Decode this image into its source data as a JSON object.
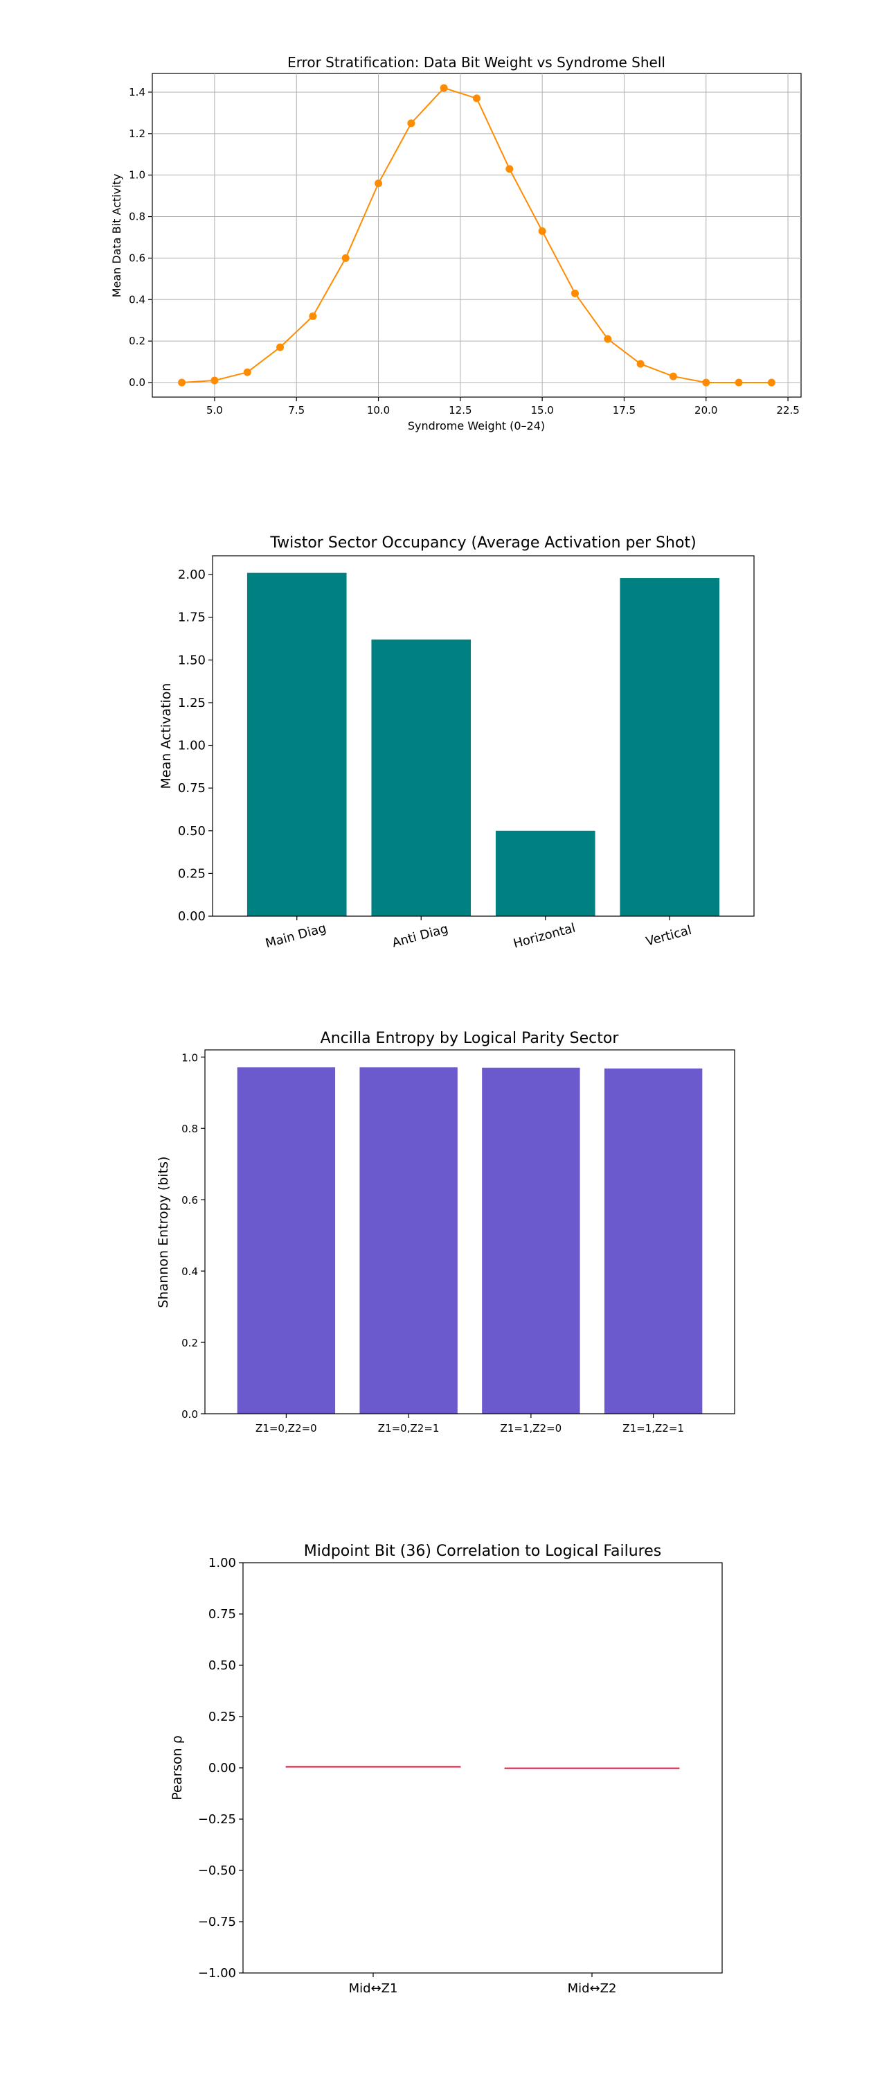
{
  "chart_data": [
    {
      "type": "line",
      "title": "Error Stratification: Data Bit Weight vs Syndrome Shell",
      "xlabel": "Syndrome Weight (0–24)",
      "ylabel": "Mean Data Bit Activity",
      "xlim": [
        3.1,
        22.9
      ],
      "ylim": [
        -0.07,
        1.49
      ],
      "xticks": [
        "5.0",
        "7.5",
        "10.0",
        "12.5",
        "15.0",
        "17.5",
        "20.0",
        "22.5"
      ],
      "yticks": [
        "0.0",
        "0.2",
        "0.4",
        "0.6",
        "0.8",
        "1.0",
        "1.2",
        "1.4"
      ],
      "grid": true,
      "color": "#ff8c00",
      "x": [
        4,
        5,
        6,
        7,
        8,
        9,
        10,
        11,
        12,
        13,
        14,
        15,
        16,
        17,
        18,
        19,
        20,
        21,
        22
      ],
      "y": [
        0.0,
        0.01,
        0.05,
        0.17,
        0.32,
        0.6,
        0.96,
        1.25,
        1.42,
        1.37,
        1.03,
        0.73,
        0.43,
        0.21,
        0.09,
        0.03,
        0.0,
        0.0,
        0.0
      ]
    },
    {
      "type": "bar",
      "title": "Twistor Sector Occupancy (Average Activation per Shot)",
      "xlabel": "",
      "ylabel": "Mean Activation",
      "ylim": [
        0,
        2.11
      ],
      "yticks": [
        "0.00",
        "0.25",
        "0.50",
        "0.75",
        "1.00",
        "1.25",
        "1.50",
        "1.75",
        "2.00"
      ],
      "color": "#008080",
      "categories": [
        "Main Diag",
        "Anti Diag",
        "Horizontal",
        "Vertical"
      ],
      "values": [
        2.01,
        1.62,
        0.5,
        1.98
      ]
    },
    {
      "type": "bar",
      "title": "Ancilla Entropy by Logical Parity Sector",
      "xlabel": "",
      "ylabel": "Shannon Entropy (bits)",
      "ylim": [
        0,
        1.02
      ],
      "yticks": [
        "0.0",
        "0.2",
        "0.4",
        "0.6",
        "0.8",
        "1.0"
      ],
      "color": "#6a5acd",
      "categories": [
        "Z1=0,Z2=0",
        "Z1=0,Z2=1",
        "Z1=1,Z2=0",
        "Z1=1,Z2=1"
      ],
      "values": [
        0.971,
        0.971,
        0.97,
        0.968
      ]
    },
    {
      "type": "bar",
      "title": "Midpoint Bit (36) Correlation to Logical Failures",
      "xlabel": "",
      "ylabel": "Pearson ρ",
      "ylim": [
        -1,
        1
      ],
      "yticks": [
        "−1.00",
        "−0.75",
        "−0.50",
        "−0.25",
        "0.00",
        "0.25",
        "0.50",
        "0.75",
        "1.00"
      ],
      "color": "#dc143c",
      "categories": [
        "Mid↔Z1",
        "Mid↔Z2"
      ],
      "values": [
        0.005,
        -0.002
      ]
    }
  ]
}
